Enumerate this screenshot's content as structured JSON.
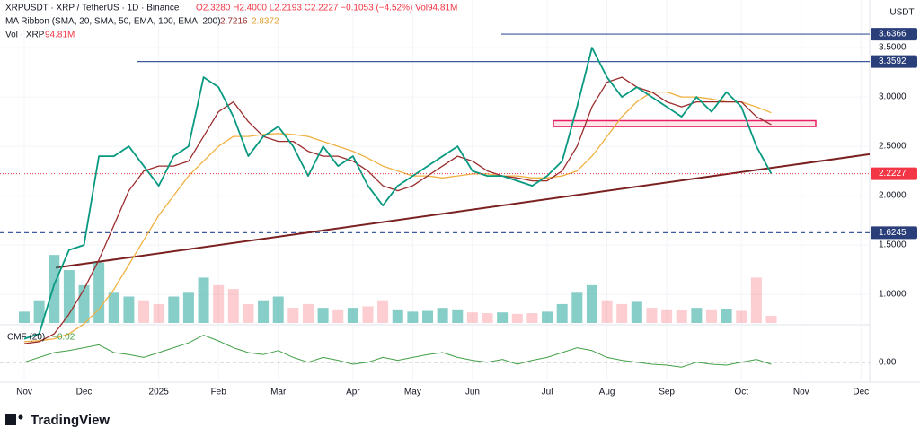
{
  "chart_data": [
    {
      "type": "line",
      "header": {
        "symbol": "XRPUSDT · XRP / TetherUS · 1D · Binance",
        "ohlc": "O2.3280 H2.4000 L2.2193 C2.2227 −0.1053 (−4.52%) Vol94.81M",
        "ribbon": "MA Ribbon (SMA, 20, SMA, 50, EMA, 100, EMA, 200)",
        "ribbon_values": [
          "2.7216",
          "2.8372"
        ],
        "vol": "Vol · XRP",
        "vol_value": "94.81M"
      },
      "currency": "USDT",
      "categories": [
        "Nov",
        null,
        null,
        null,
        "Dec",
        null,
        null,
        null,
        null,
        "2025",
        null,
        null,
        null,
        "Feb",
        null,
        null,
        null,
        "Mar",
        null,
        null,
        null,
        null,
        "Apr",
        null,
        null,
        null,
        "May",
        null,
        null,
        null,
        "Jun",
        null,
        null,
        null,
        null,
        "Jul",
        null,
        null,
        null,
        "Aug",
        null,
        null,
        null,
        "Sep",
        null,
        null,
        null,
        null,
        "Oct",
        null,
        null,
        null,
        "Nov",
        null,
        null,
        null,
        "Dec",
        null
      ],
      "series": [
        {
          "name": "XRPUSDT",
          "color": "#089981",
          "values": [
            0.55,
            0.6,
            1.1,
            1.45,
            1.5,
            2.4,
            2.4,
            2.5,
            2.3,
            2.1,
            2.4,
            2.5,
            3.2,
            3.1,
            2.8,
            2.4,
            2.6,
            2.7,
            2.5,
            2.2,
            2.5,
            2.3,
            2.4,
            2.1,
            1.9,
            2.1,
            2.2,
            2.3,
            2.4,
            2.5,
            2.25,
            2.2,
            2.2,
            2.15,
            2.1,
            2.2,
            2.35,
            2.9,
            3.5,
            3.2,
            3.0,
            3.1,
            3.0,
            2.9,
            2.8,
            3.0,
            2.85,
            3.05,
            2.9,
            2.5,
            2.2227,
            null,
            null,
            null,
            null,
            null,
            null,
            null
          ]
        },
        {
          "color": "#9b2c2c",
          "values": [
            0.5,
            0.52,
            0.6,
            0.8,
            1.05,
            1.35,
            1.7,
            2.05,
            2.25,
            2.3,
            2.3,
            2.35,
            2.6,
            2.85,
            2.95,
            2.75,
            2.6,
            2.55,
            2.55,
            2.45,
            2.4,
            2.4,
            2.35,
            2.25,
            2.1,
            2.05,
            2.1,
            2.2,
            2.3,
            2.4,
            2.35,
            2.25,
            2.2,
            2.18,
            2.15,
            2.15,
            2.25,
            2.5,
            2.9,
            3.15,
            3.2,
            3.1,
            3.05,
            2.95,
            2.9,
            2.95,
            2.95,
            2.95,
            2.95,
            2.8,
            2.72,
            null,
            null,
            null,
            null,
            null,
            null,
            null
          ]
        },
        {
          "color": "#f0b040",
          "values": [
            0.52,
            0.53,
            0.55,
            0.6,
            0.7,
            0.85,
            1.05,
            1.3,
            1.55,
            1.8,
            2.0,
            2.2,
            2.35,
            2.5,
            2.6,
            2.6,
            2.62,
            2.63,
            2.62,
            2.6,
            2.55,
            2.5,
            2.45,
            2.38,
            2.3,
            2.25,
            2.2,
            2.2,
            2.18,
            2.2,
            2.22,
            2.22,
            2.2,
            2.2,
            2.18,
            2.18,
            2.2,
            2.25,
            2.4,
            2.6,
            2.8,
            2.95,
            3.05,
            3.05,
            3.0,
            3.0,
            2.98,
            2.95,
            2.95,
            2.9,
            2.84,
            null,
            null,
            null,
            null,
            null,
            null,
            null
          ]
        }
      ],
      "ylim": [
        0.71,
        3.91
      ],
      "yticks": [
        {
          "value": 1.0,
          "label": "1.0000"
        },
        {
          "value": 1.5,
          "label": "1.5000"
        },
        {
          "value": 2.0,
          "label": "2.0000"
        },
        {
          "value": 2.5,
          "label": "2.5000"
        },
        {
          "value": 3.0,
          "label": "3.0000"
        },
        {
          "value": 3.5,
          "label": "3.5000"
        }
      ],
      "levels": [
        3.6366,
        3.3592,
        1.6245
      ],
      "last_price": 2.2227,
      "trendline": [
        1.27,
        2.42
      ],
      "zone": [
        2.7,
        2.76
      ],
      "grid": true
    },
    {
      "type": "bar",
      "color": "#26a69a",
      "values": [
        150,
        300,
        900,
        700,
        500,
        800,
        400,
        350,
        300,
        250,
        350,
        400,
        600,
        500,
        450,
        250,
        300,
        350,
        200,
        250,
        200,
        180,
        200,
        220,
        300,
        180,
        150,
        160,
        200,
        180,
        140,
        130,
        140,
        120,
        130,
        150,
        250,
        400,
        500,
        300,
        250,
        280,
        200,
        180,
        170,
        200,
        180,
        190,
        160,
        600,
        94.81,
        null,
        null,
        null,
        null,
        null,
        null,
        null
      ],
      "ylim": [
        0,
        1400
      ]
    },
    {
      "type": "line",
      "title": "CMF (20)",
      "value_label": "−0.02",
      "color": "#43a047",
      "values": [
        0.0,
        0.05,
        0.1,
        0.12,
        0.15,
        0.18,
        0.1,
        0.08,
        0.05,
        0.1,
        0.15,
        0.2,
        0.28,
        0.22,
        0.15,
        0.1,
        0.08,
        0.12,
        0.05,
        0.0,
        0.05,
        0.02,
        -0.02,
        0.0,
        0.05,
        0.02,
        0.05,
        0.08,
        0.1,
        0.05,
        0.02,
        0.0,
        0.03,
        -0.02,
        0.02,
        0.05,
        0.1,
        0.15,
        0.12,
        0.05,
        0.02,
        0.0,
        -0.02,
        -0.03,
        -0.05,
        0.0,
        -0.02,
        -0.03,
        0.0,
        0.03,
        -0.02,
        null,
        null,
        null,
        null,
        null,
        null,
        null
      ],
      "ylim": [
        -0.15,
        0.35
      ],
      "yticks": [
        {
          "value": 0,
          "label": "0.00"
        }
      ]
    }
  ],
  "footer": {
    "brand": "TradingView"
  }
}
